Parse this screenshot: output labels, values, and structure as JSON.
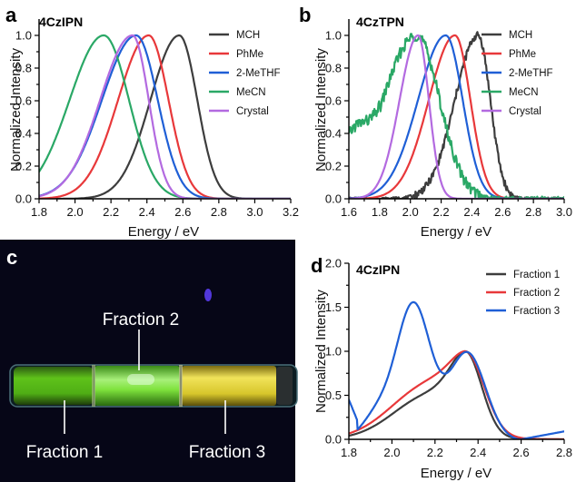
{
  "chart_data": [
    {
      "panel": "a",
      "type": "line",
      "title": "4CzIPN",
      "xlabel": "Energy / eV",
      "ylabel": "Normalized Intensity",
      "xlim": [
        1.8,
        3.2
      ],
      "ylim": [
        0.0,
        1.1
      ],
      "xticks": [
        "1.8",
        "2.0",
        "2.2",
        "2.4",
        "2.6",
        "2.8",
        "3.0",
        "3.2"
      ],
      "yticks": [
        "0.0",
        "0.2",
        "0.4",
        "0.6",
        "0.8",
        "1.0"
      ],
      "legend_position": "top-right",
      "series": [
        {
          "name": "MCH",
          "color": "#3d3d3d",
          "peak": 2.58,
          "sl": 0.16,
          "sr": 0.1
        },
        {
          "name": "PhMe",
          "color": "#e8383a",
          "peak": 2.41,
          "sl": 0.17,
          "sr": 0.11
        },
        {
          "name": "2-MeTHF",
          "color": "#1f5fd6",
          "peak": 2.34,
          "sl": 0.19,
          "sr": 0.12
        },
        {
          "name": "MeCN",
          "color": "#2aa866",
          "peak": 2.16,
          "sl": 0.19,
          "sr": 0.14
        },
        {
          "name": "Crystal",
          "color": "#b36ae0",
          "peak": 2.32,
          "sl": 0.18,
          "sr": 0.09
        }
      ]
    },
    {
      "panel": "b",
      "type": "line",
      "title": "4CzTPN",
      "xlabel": "Energy / eV",
      "ylabel": "Normalized Intensity",
      "xlim": [
        1.6,
        3.0
      ],
      "ylim": [
        0.0,
        1.1
      ],
      "xticks": [
        "1.6",
        "1.8",
        "2.0",
        "2.2",
        "2.4",
        "2.6",
        "2.8",
        "3.0"
      ],
      "yticks": [
        "0.0",
        "0.2",
        "0.4",
        "0.6",
        "0.8",
        "1.0"
      ],
      "legend_position": "top-right",
      "series": [
        {
          "name": "MCH",
          "color": "#3d3d3d",
          "peak": 2.44,
          "sl": 0.15,
          "sr": 0.08,
          "noisy": true
        },
        {
          "name": "PhMe",
          "color": "#e8383a",
          "peak": 2.29,
          "sl": 0.17,
          "sr": 0.1
        },
        {
          "name": "2-MeTHF",
          "color": "#1f5fd6",
          "peak": 2.23,
          "sl": 0.18,
          "sr": 0.11
        },
        {
          "name": "MeCN",
          "color": "#2aa866",
          "peak": 2.04,
          "sl": 0.22,
          "sr": 0.15,
          "noisy": true
        },
        {
          "name": "Crystal",
          "color": "#b36ae0",
          "peak": 2.05,
          "sl": 0.12,
          "sr": 0.07
        }
      ]
    },
    {
      "panel": "d",
      "type": "line",
      "title": "4CzIPN",
      "xlabel": "Energy / eV",
      "ylabel": "Normalized Intensity",
      "xlim": [
        1.8,
        2.8
      ],
      "ylim": [
        0.0,
        2.0
      ],
      "xticks": [
        "1.8",
        "2.0",
        "2.2",
        "2.4",
        "2.6",
        "2.8"
      ],
      "yticks": [
        "0.0",
        "0.5",
        "1.0",
        "1.5",
        "2.0"
      ],
      "legend_position": "top-right",
      "series": [
        {
          "name": "Fraction 1",
          "color": "#3d3d3d"
        },
        {
          "name": "Fraction 2",
          "color": "#e8383a"
        },
        {
          "name": "Fraction 3",
          "color": "#1f5fd6"
        }
      ]
    }
  ],
  "panel_c": {
    "letter": "c",
    "labels": [
      "Fraction 1",
      "Fraction 2",
      "Fraction 3"
    ]
  },
  "panel_letters": {
    "a": "a",
    "b": "b",
    "c": "c",
    "d": "d"
  }
}
